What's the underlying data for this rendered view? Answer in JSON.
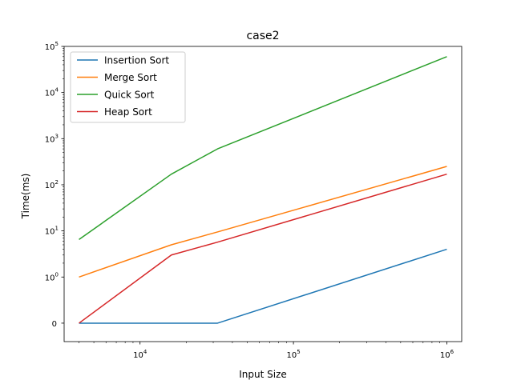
{
  "chart_data": {
    "type": "line",
    "title": "case2",
    "xlabel": "Input Size",
    "ylabel": "Time(ms)",
    "x_scale": "log",
    "y_scale": "symlog",
    "x": [
      4000,
      16000,
      32000,
      1000000
    ],
    "xlim": [
      3200,
      1250000
    ],
    "ylim": [
      -0.4,
      100000
    ],
    "x_ticks": [
      {
        "value": 10000,
        "base": "10",
        "exp": "4"
      },
      {
        "value": 100000,
        "base": "10",
        "exp": "5"
      },
      {
        "value": 1000000,
        "base": "10",
        "exp": "6"
      }
    ],
    "y_ticks": [
      {
        "value": 0,
        "label": "0"
      },
      {
        "value": 1,
        "base": "10",
        "exp": "0"
      },
      {
        "value": 10,
        "base": "10",
        "exp": "1"
      },
      {
        "value": 100,
        "base": "10",
        "exp": "2"
      },
      {
        "value": 1000,
        "base": "10",
        "exp": "3"
      },
      {
        "value": 10000,
        "base": "10",
        "exp": "4"
      },
      {
        "value": 100000,
        "base": "10",
        "exp": "5"
      }
    ],
    "legend_position": "top-left",
    "series": [
      {
        "name": "Insertion Sort",
        "color": "#1f77b4",
        "values": [
          0,
          0,
          0,
          4
        ]
      },
      {
        "name": "Merge Sort",
        "color": "#ff7f0e",
        "values": [
          1,
          5,
          9.5,
          250
        ]
      },
      {
        "name": "Quick Sort",
        "color": "#2ca02c",
        "values": [
          6.5,
          170,
          600,
          60000
        ]
      },
      {
        "name": "Heap Sort",
        "color": "#d62728",
        "values": [
          0,
          3,
          5.7,
          170
        ]
      }
    ]
  }
}
